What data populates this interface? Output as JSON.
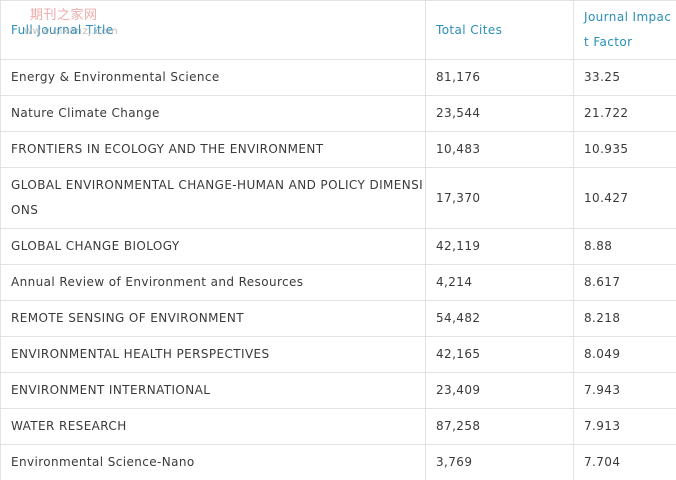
{
  "header": {
    "col_title": "Full Journal Title",
    "col_cites": "Total Cites",
    "col_jif": "Journal Impact Factor"
  },
  "watermark": {
    "cn": "期刊之家网",
    "url": "www.qikanzj.com"
  },
  "rows": [
    {
      "title": "Energy  & Environmental Science",
      "cites": "81,176",
      "jif": "33.25"
    },
    {
      "title": "Nature  Climate Change",
      "cites": "23,544",
      "jif": "21.722"
    },
    {
      "title": "FRONTIERS  IN ECOLOGY AND THE ENVIRONMENT",
      "cites": "10,483",
      "jif": "10.935"
    },
    {
      "title": "GLOBAL   ENVIRONMENTAL CHANGE-HUMAN AND POLICY DIMENSIONS",
      "cites": "17,370",
      "jif": "10.427"
    },
    {
      "title": "GLOBAL  CHANGE BIOLOGY",
      "cites": "42,119",
      "jif": "8.88"
    },
    {
      "title": "Annual  Review of Environment and Resources",
      "cites": "4,214",
      "jif": "8.617"
    },
    {
      "title": "REMOTE  SENSING OF ENVIRONMENT",
      "cites": "54,482",
      "jif": "8.218"
    },
    {
      "title": "ENVIRONMENTAL  HEALTH PERSPECTIVES",
      "cites": "42,165",
      "jif": "8.049"
    },
    {
      "title": "ENVIRONMENT  INTERNATIONAL",
      "cites": "23,409",
      "jif": "7.943"
    },
    {
      "title": "WATER  RESEARCH",
      "cites": "87,258",
      "jif": "7.913"
    },
    {
      "title": "Environmental  Science-Nano",
      "cites": "3,769",
      "jif": "7.704"
    }
  ]
}
